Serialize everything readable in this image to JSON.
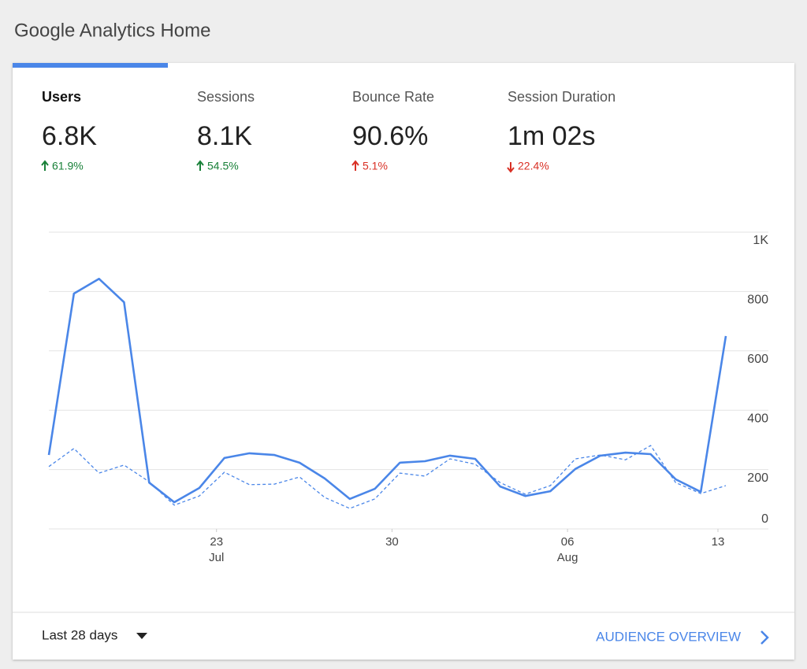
{
  "header": {
    "title": "Google Analytics Home"
  },
  "metrics": [
    {
      "label": "Users",
      "value": "6.8K",
      "change": "61.9%",
      "trend": "up",
      "color": "#188038"
    },
    {
      "label": "Sessions",
      "value": "8.1K",
      "change": "54.5%",
      "trend": "up",
      "color": "#188038"
    },
    {
      "label": "Bounce Rate",
      "value": "90.6%",
      "change": "5.1%",
      "trend": "up",
      "color": "#d93025"
    },
    {
      "label": "Session Duration",
      "value": "1m 02s",
      "change": "22.4%",
      "trend": "down",
      "color": "#d93025"
    }
  ],
  "active_metric": 0,
  "chart_data": {
    "type": "line",
    "categories": [
      null,
      null,
      null,
      null,
      null,
      null,
      null,
      "23",
      null,
      null,
      null,
      null,
      null,
      null,
      "30",
      null,
      null,
      null,
      null,
      null,
      null,
      "06",
      null,
      null,
      null,
      null,
      null,
      "13"
    ],
    "category_sublabels": [
      null,
      null,
      null,
      null,
      null,
      null,
      null,
      "Jul",
      null,
      null,
      null,
      null,
      null,
      null,
      null,
      null,
      null,
      null,
      null,
      null,
      null,
      "Aug",
      null,
      null,
      null,
      null,
      null,
      null
    ],
    "series": [
      {
        "color": "#4a86e8",
        "dashed": false,
        "values": [
          249,
          793,
          843,
          764,
          156,
          90,
          138,
          239,
          255,
          249,
          223,
          170,
          101,
          135,
          223,
          228,
          247,
          236,
          143,
          111,
          127,
          202,
          247,
          257,
          252,
          167,
          125,
          650
        ]
      },
      {
        "color": "#4a86e8",
        "dashed": true,
        "values": [
          210,
          271,
          188,
          215,
          159,
          80,
          111,
          191,
          149,
          151,
          175,
          106,
          69,
          101,
          188,
          178,
          236,
          218,
          156,
          117,
          146,
          236,
          249,
          233,
          281,
          156,
          119,
          146
        ]
      }
    ],
    "ylim": [
      0,
      1000
    ],
    "yticks": [
      0,
      200,
      400,
      600,
      800,
      {
        "value": 1000,
        "label": "1K"
      }
    ],
    "grid": true
  },
  "footer": {
    "date_range": "Last 28 days",
    "link": "AUDIENCE OVERVIEW"
  }
}
